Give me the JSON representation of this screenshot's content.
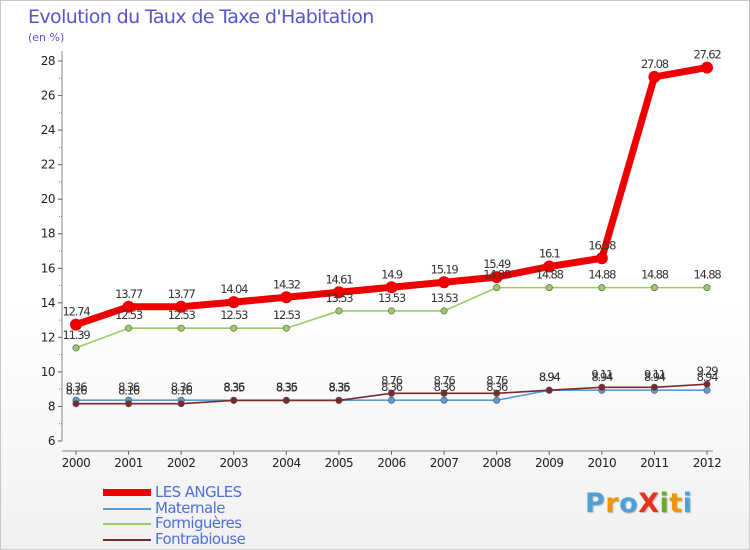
{
  "title": "Evolution du Taux de Taxe d'Habitation",
  "unit": "(en %)",
  "brand": {
    "text": "ProXiti",
    "letters": [
      "P",
      "r",
      "o",
      "X",
      "i",
      "t",
      "i"
    ],
    "colors": [
      "#4f9fd8",
      "#f29400",
      "#4f9fd8",
      "#e6331a",
      "#6aaa2a",
      "#f29400",
      "#4f9fd8"
    ]
  },
  "chart_data": {
    "type": "line",
    "title": "Evolution du Taux de Taxe d'Habitation",
    "ylabel": "(en %)",
    "xlabel": "",
    "x": [
      "2000",
      "2001",
      "2002",
      "2003",
      "2004",
      "2005",
      "2006",
      "2007",
      "2008",
      "2009",
      "2010",
      "2011",
      "2012"
    ],
    "yticks": [
      "6",
      "8",
      "10",
      "12",
      "14",
      "16",
      "18",
      "20",
      "22",
      "24",
      "26",
      "28"
    ],
    "ylim": [
      6,
      28.5
    ],
    "grid": false,
    "legend_position": "bottom-left",
    "series": [
      {
        "name": "LES ANGLES",
        "color": "#ee0000",
        "values": [
          12.74,
          13.77,
          13.77,
          14.04,
          14.32,
          14.61,
          14.9,
          15.19,
          15.49,
          16.1,
          16.58,
          27.08,
          27.62
        ],
        "labels": [
          "12.74",
          "13.77",
          "13.77",
          "14.04",
          "14.32",
          "14.61",
          "14.9",
          "15.19",
          "15.49",
          "16.1",
          "16.58",
          "27.08",
          "27.62"
        ]
      },
      {
        "name": "Maternale",
        "color": "#5b9bd5",
        "values": [
          8.36,
          8.36,
          8.36,
          8.36,
          8.36,
          8.36,
          8.36,
          8.36,
          8.36,
          8.94,
          8.94,
          8.94,
          8.94
        ],
        "labels": [
          "8.36",
          "8.36",
          "8.36",
          "8.36",
          "8.36",
          "8.36",
          "8.36",
          "8.36",
          "8.36",
          "8.94",
          "8.94",
          "8.94",
          "8.94"
        ]
      },
      {
        "name": "Formiguères",
        "color": "#9acd60",
        "values": [
          11.39,
          12.53,
          12.53,
          12.53,
          12.53,
          13.53,
          13.53,
          13.53,
          14.88,
          14.88,
          14.88,
          14.88,
          14.88
        ],
        "labels": [
          "11.39",
          "12.53",
          "12.53",
          "12.53",
          "12.53",
          "13.53",
          "13.53",
          "13.53",
          "14.88",
          "14.88",
          "14.88",
          "14.88",
          "14.88"
        ]
      },
      {
        "name": "Fontrabiouse",
        "color": "#7a2a2a",
        "values": [
          8.16,
          8.16,
          8.16,
          8.35,
          8.35,
          8.35,
          8.76,
          8.76,
          8.76,
          8.94,
          9.11,
          9.11,
          9.29
        ],
        "labels": [
          "8.16",
          "8.16",
          "8.16",
          "8.35",
          "8.35",
          "8.35",
          "8.76",
          "8.76",
          "8.76",
          "8.94",
          "9.11",
          "9.11",
          "9.29"
        ]
      }
    ]
  }
}
